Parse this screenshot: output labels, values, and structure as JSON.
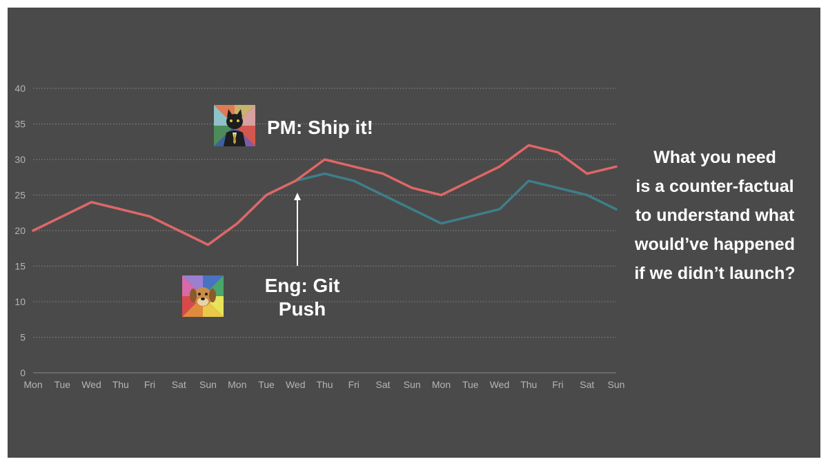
{
  "chart_data": {
    "type": "line",
    "categories": [
      "Mon",
      "Tue",
      "Wed",
      "Thu",
      "Fri",
      "Sat",
      "Sun",
      "Mon",
      "Tue",
      "Wed",
      "Thu",
      "Fri",
      "Sat",
      "Sun",
      "Mon",
      "Tue",
      "Wed",
      "Thu",
      "Fri",
      "Sat",
      "Sun"
    ],
    "series": [
      {
        "values": [
          20,
          22,
          24,
          23,
          22,
          20,
          18,
          21,
          25,
          27,
          28,
          27,
          25,
          23,
          21,
          22,
          23,
          27,
          26,
          25,
          23
        ],
        "color": "#3d7f8a"
      },
      {
        "values": [
          20,
          22,
          24,
          23,
          22,
          20,
          18,
          21,
          25,
          27,
          30,
          29,
          28,
          26,
          25,
          27,
          29,
          32,
          31,
          28,
          29
        ],
        "color": "#e06666"
      }
    ],
    "ylim": [
      0,
      40
    ],
    "yticks": [
      "0",
      "5",
      "10",
      "15",
      "20",
      "25",
      "30",
      "35",
      "40"
    ],
    "grid": true,
    "title": "",
    "xlabel": "",
    "ylabel": ""
  },
  "annotations": {
    "pm": "PM: Ship it!",
    "eng_line1": "Eng: Git",
    "eng_line2": "Push",
    "pm_icon": "business-cat-icon",
    "eng_icon": "advice-dog-icon"
  },
  "side_text": {
    "lines": [
      "What you need",
      "is a counter-factual",
      "to understand what",
      "would’ve happened",
      "if we didn’t launch?"
    ]
  },
  "colors": {
    "background": "#4a4a4a",
    "grid": "#8a8a8a",
    "axis_text": "#b5b5b5",
    "annotation": "#ffffff"
  }
}
